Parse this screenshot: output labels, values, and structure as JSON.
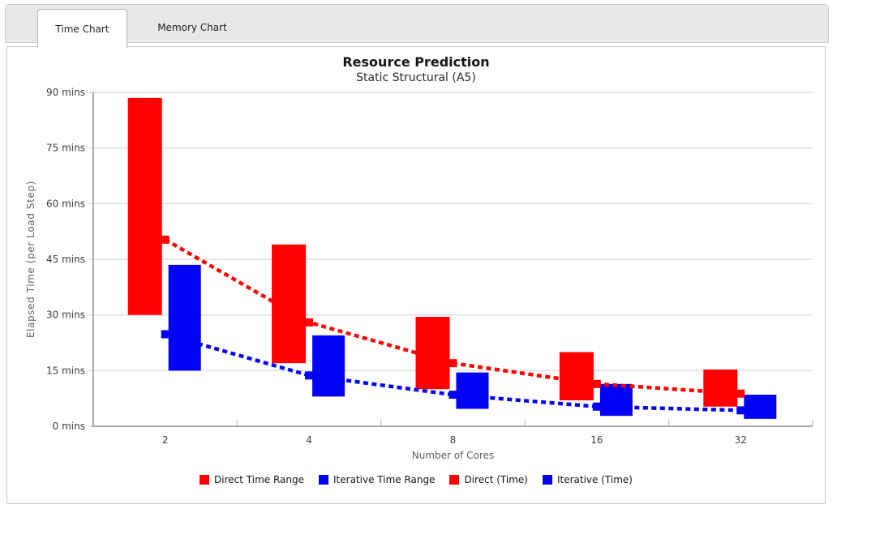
{
  "tabs": [
    {
      "label": "Time Chart",
      "active": true
    },
    {
      "label": "Memory Chart",
      "active": false
    }
  ],
  "chart_data": {
    "type": "bar",
    "subtype": "floating-range-bars-with-dashed-lines",
    "title": "Resource Prediction",
    "subtitle": "Static Structural (A5)",
    "xlabel": "Number of Cores",
    "ylabel": "Elapsed Time (per Load Step)",
    "categories": [
      "2",
      "4",
      "8",
      "16",
      "32"
    ],
    "ylim": [
      0,
      90
    ],
    "grid": true,
    "legend_position": "bottom",
    "y_ticks": [
      {
        "value": 0,
        "label": "0 mins"
      },
      {
        "value": 15,
        "label": "15 mins"
      },
      {
        "value": 30,
        "label": "30 mins"
      },
      {
        "value": 45,
        "label": "45 mins"
      },
      {
        "value": 60,
        "label": "60 mins"
      },
      {
        "value": 75,
        "label": "75 mins"
      },
      {
        "value": 90,
        "label": "90 mins"
      }
    ],
    "series": [
      {
        "name": "Direct Time Range",
        "kind": "range-bar",
        "color": "#fe0000",
        "ranges": [
          [
            30,
            88.5
          ],
          [
            17,
            49
          ],
          [
            10,
            29.5
          ],
          [
            7,
            20
          ],
          [
            5.3,
            15.3
          ]
        ]
      },
      {
        "name": "Iterative Time Range",
        "kind": "range-bar",
        "color": "#0202f5",
        "ranges": [
          [
            15,
            43.5
          ],
          [
            8,
            24.5
          ],
          [
            4.7,
            14.5
          ],
          [
            2.8,
            11.4
          ],
          [
            2,
            8.5
          ]
        ]
      },
      {
        "name": "Direct (Time)",
        "kind": "dashed-line",
        "color": "#fe0000",
        "values": [
          50.3,
          28,
          17,
          11.4,
          8.8
        ]
      },
      {
        "name": "Iterative (Time)",
        "kind": "dashed-line",
        "color": "#0202f5",
        "values": [
          24.8,
          13.7,
          8.5,
          5.3,
          4.3
        ]
      }
    ]
  }
}
